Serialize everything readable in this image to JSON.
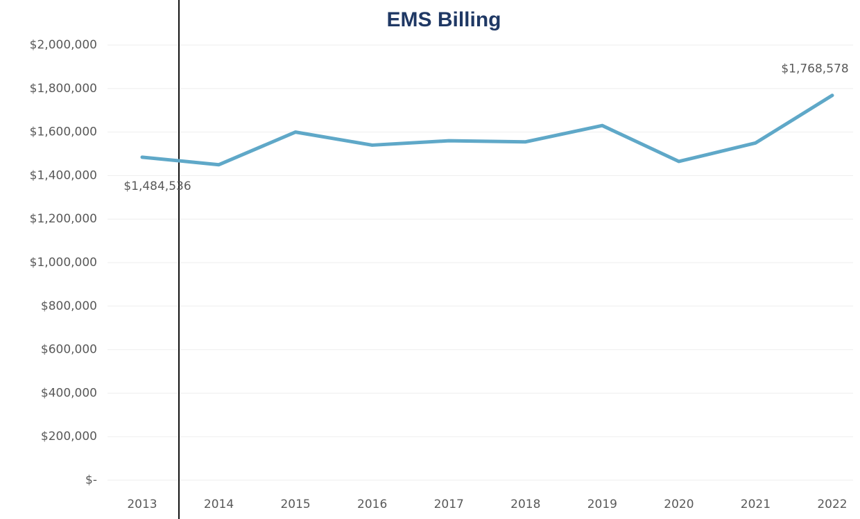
{
  "chart_data": {
    "type": "line",
    "title": "EMS Billing",
    "categories": [
      "2013",
      "2014",
      "2015",
      "2016",
      "2017",
      "2018",
      "2019",
      "2020",
      "2021",
      "2022"
    ],
    "series": [
      {
        "name": "EMS Billing",
        "color": "#5fa8c8",
        "values": [
          1484536,
          1450000,
          1600000,
          1540000,
          1560000,
          1555000,
          1630000,
          1465000,
          1550000,
          1768578
        ],
        "value_labels": [
          "$1,484,536",
          null,
          null,
          null,
          null,
          null,
          null,
          null,
          null,
          "$1,768,578"
        ]
      }
    ],
    "ylim": [
      0,
      2000000
    ],
    "yticks": [
      {
        "value": 0,
        "label": "$-"
      },
      {
        "value": 200000,
        "label": "$200,000"
      },
      {
        "value": 400000,
        "label": "$400,000"
      },
      {
        "value": 600000,
        "label": "$600,000"
      },
      {
        "value": 800000,
        "label": "$800,000"
      },
      {
        "value": 1000000,
        "label": "$1,000,000"
      },
      {
        "value": 1200000,
        "label": "$1,200,000"
      },
      {
        "value": 1400000,
        "label": "$1,400,000"
      },
      {
        "value": 1600000,
        "label": "$1,600,000"
      },
      {
        "value": 1800000,
        "label": "$1,800,000"
      },
      {
        "value": 2000000,
        "label": "$2,000,000"
      }
    ],
    "grid": true
  }
}
